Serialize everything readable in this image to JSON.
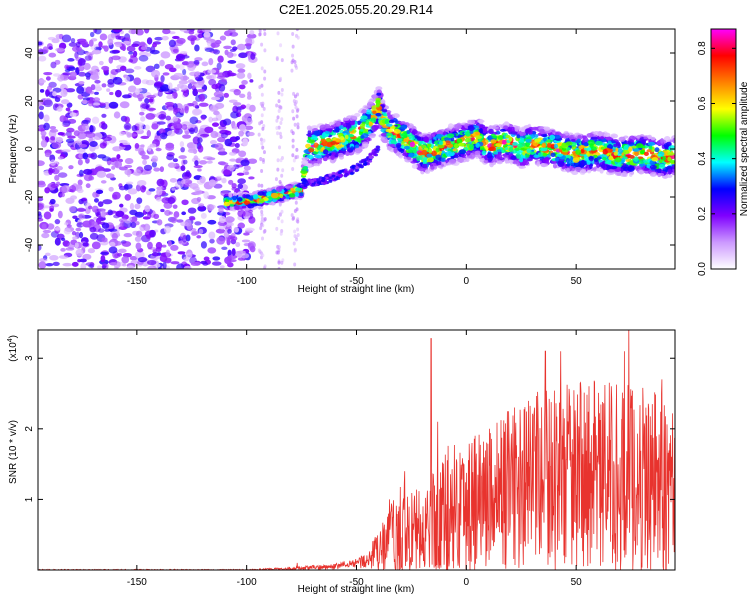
{
  "title": "C2E1.2025.055.20.29.R14",
  "chart_data": [
    {
      "type": "heatmap",
      "xlabel": "Height of straight line (km)",
      "ylabel": "Frequency (Hz)",
      "xlim": [
        -195,
        95
      ],
      "ylim": [
        -50,
        50
      ],
      "x_ticks": [
        -150,
        -100,
        -50,
        0,
        50
      ],
      "y_ticks": [
        -40,
        -20,
        0,
        20,
        40
      ],
      "colorbar": {
        "label": "Normalized spectral amplitude",
        "range": [
          0,
          0.87
        ],
        "ticks": [
          0.0,
          0.2,
          0.4,
          0.6,
          0.8
        ],
        "colors": [
          "#ffffff",
          "#cc99ff",
          "#7f00ff",
          "#0000ff",
          "#00ffff",
          "#00ff00",
          "#ffff00",
          "#ff8000",
          "#ff0000",
          "#ff00ff"
        ]
      },
      "ridge": {
        "x": [
          -110,
          -100,
          -95,
          -90,
          -85,
          -80,
          -75,
          -72,
          -70,
          -65,
          -60,
          -55,
          -50,
          -45,
          -42,
          -40,
          -38,
          -35,
          -30,
          -25,
          -20,
          -15,
          -10,
          -5,
          0,
          5,
          10,
          15,
          20,
          25,
          30,
          40,
          50,
          60,
          70,
          80,
          90,
          95
        ],
        "y": [
          -22,
          -22,
          -21,
          -20,
          -19,
          -18,
          -17,
          1,
          1,
          2,
          3,
          5,
          6,
          10,
          14,
          18,
          12,
          8,
          5,
          2,
          -2,
          -1,
          1,
          2,
          3,
          5,
          1,
          2,
          3,
          0,
          2,
          0,
          -2,
          -1,
          -3,
          -2,
          -4,
          -3
        ]
      },
      "secondary_trace": {
        "x": [
          -75,
          -65,
          -55,
          -50,
          -45,
          -40
        ],
        "y": [
          -15,
          -13,
          -10,
          -8,
          -5,
          0
        ]
      },
      "grid": false
    },
    {
      "type": "line",
      "xlabel": "Height of straight line (km)",
      "ylabel": "SNR (10 * v/v)",
      "multiplier_label": "(x10",
      "multiplier_exponent": "4",
      "multiplier_close": ")",
      "xlim": [
        -195,
        95
      ],
      "ylim": [
        0,
        3.4
      ],
      "x_ticks": [
        -150,
        -100,
        -50,
        0,
        50
      ],
      "y_ticks": [
        1,
        2,
        3
      ],
      "color": "#e8332e",
      "envelope": {
        "x": [
          -195,
          -100,
          -80,
          -60,
          -50,
          -45,
          -40,
          -35,
          -30,
          -25,
          -20,
          -15,
          -10,
          -5,
          0,
          10,
          20,
          30,
          40,
          50,
          60,
          70,
          80,
          90,
          95
        ],
        "base": [
          0.0,
          0.0,
          0.02,
          0.05,
          0.1,
          0.15,
          0.25,
          0.4,
          0.5,
          0.5,
          0.45,
          0.6,
          0.75,
          0.85,
          0.95,
          1.05,
          1.15,
          1.25,
          1.3,
          1.35,
          1.35,
          1.3,
          1.3,
          1.25,
          1.2
        ],
        "amp": [
          0.01,
          0.01,
          0.02,
          0.04,
          0.06,
          0.15,
          0.3,
          0.5,
          0.7,
          0.8,
          0.6,
          0.9,
          1.0,
          1.0,
          1.0,
          1.05,
          1.15,
          1.25,
          1.3,
          1.35,
          1.35,
          1.35,
          1.35,
          1.3,
          1.25
        ]
      },
      "spikes": [
        {
          "x": -77,
          "y": 0.1
        },
        {
          "x": -35,
          "y": 1.0
        },
        {
          "x": -28,
          "y": 1.4
        },
        {
          "x": -16,
          "y": 3.28
        },
        {
          "x": -13,
          "y": 2.1
        },
        {
          "x": 36,
          "y": 3.1
        },
        {
          "x": 43,
          "y": 3.1
        },
        {
          "x": 72,
          "y": 3.1
        },
        {
          "x": 74,
          "y": 3.5
        },
        {
          "x": 89,
          "y": 2.7
        }
      ],
      "grid": false
    }
  ]
}
